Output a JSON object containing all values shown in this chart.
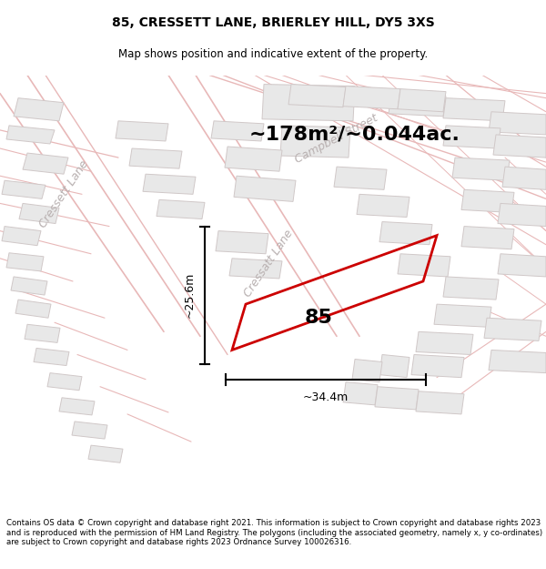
{
  "title": "85, CRESSETT LANE, BRIERLEY HILL, DY5 3XS",
  "subtitle": "Map shows position and indicative extent of the property.",
  "area_text": "~178m²/~0.044ac.",
  "label_85": "85",
  "dim_width": "~34.4m",
  "dim_height": "~25.6m",
  "footer": "Contains OS data © Crown copyright and database right 2021. This information is subject to Crown copyright and database rights 2023 and is reproduced with the permission of HM Land Registry. The polygons (including the associated geometry, namely x, y co-ordinates) are subject to Crown copyright and database rights 2023 Ordnance Survey 100026316.",
  "map_bg": "#ffffff",
  "building_fill": "#e8e8e8",
  "building_edge": "#d0c8c8",
  "road_line_color": "#e8b8b8",
  "highlight_edge": "#cc0000",
  "street_label_color": "#b8b0b0",
  "title_color": "#000000",
  "footer_color": "#000000",
  "title_fontsize": 10,
  "subtitle_fontsize": 8.5,
  "area_fontsize": 16,
  "label_fontsize": 16,
  "dim_fontsize": 9,
  "street_fontsize": 9,
  "footer_fontsize": 6.2
}
